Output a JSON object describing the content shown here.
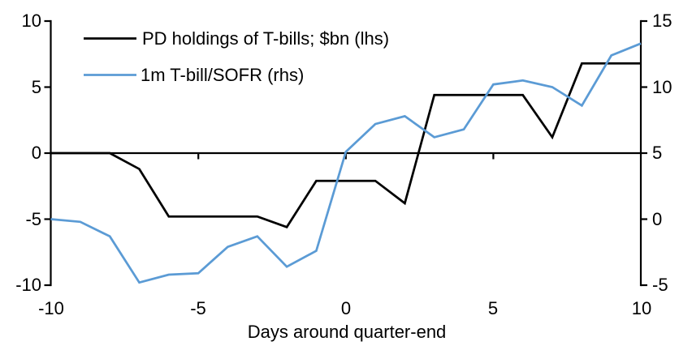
{
  "chart_data": {
    "type": "line",
    "title": "",
    "xlabel": "Days around quarter-end",
    "grid": false,
    "legend_position": "top-left",
    "x": [
      -10,
      -9,
      -8,
      -7,
      -6,
      -5,
      -4,
      -3,
      -2,
      -1,
      0,
      1,
      2,
      3,
      4,
      5,
      6,
      7,
      8,
      9,
      10
    ],
    "series": [
      {
        "name": "PD holdings of T-bills; $bn (lhs)",
        "axis": "left",
        "color": "#000000",
        "values": [
          0,
          0,
          0,
          -1.2,
          -4.8,
          -4.8,
          -4.8,
          -4.8,
          -5.6,
          -2.1,
          -2.1,
          -2.1,
          -3.8,
          4.4,
          4.4,
          4.4,
          4.4,
          1.2,
          6.8,
          6.8,
          6.8
        ]
      },
      {
        "name": "1m T-bill/SOFR (rhs)",
        "axis": "right",
        "color": "#5B9BD5",
        "values": [
          0,
          -0.2,
          -1.3,
          -4.8,
          -4.2,
          -4.1,
          -2.1,
          -1.3,
          -3.6,
          -2.4,
          5.1,
          7.2,
          7.8,
          6.2,
          6.8,
          10.2,
          10.5,
          10,
          8.6,
          12.4,
          13.3
        ]
      }
    ],
    "left_axis": {
      "ticks": [
        "10",
        "5",
        "0",
        "-5",
        "-10"
      ],
      "range": [
        -10,
        10
      ]
    },
    "right_axis": {
      "ticks": [
        "15",
        "10",
        "5",
        "0",
        "-5"
      ],
      "range": [
        -5,
        15
      ]
    },
    "x_axis": {
      "ticks": [
        "-10",
        "-5",
        "0",
        "5",
        "10"
      ],
      "range": [
        -10,
        10
      ]
    }
  }
}
